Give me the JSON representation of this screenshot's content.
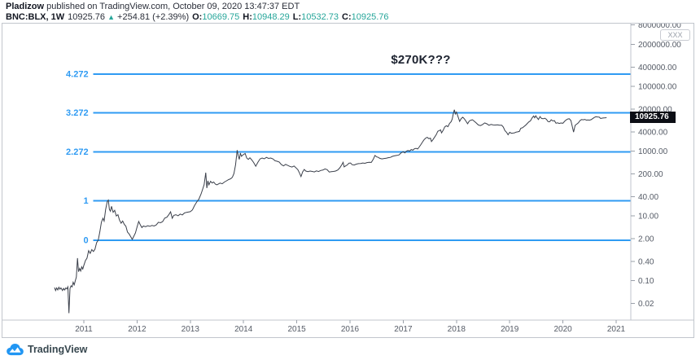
{
  "header": {
    "author": "Pladizow",
    "published_text": " published on TradingView.com, October 09, 2020 13:47:37 EDT",
    "symbol": "BNC:BLX, 1W",
    "last_price": "10925.76",
    "up_arrow": "▲",
    "change_text": "+254.81 (+2.39%)",
    "ohlc": [
      {
        "label": "O:",
        "value": "10669.75"
      },
      {
        "label": "H:",
        "value": "10948.29"
      },
      {
        "label": "L:",
        "value": "10532.73"
      },
      {
        "label": "C:",
        "value": "10925.76"
      }
    ]
  },
  "annotation_text": "$270K???",
  "axis_watermark": "XXX",
  "price_badge_text": "10925.76",
  "footer": {
    "brand": "TradingView"
  },
  "colors": {
    "fib_blue": "#2f9bf3",
    "price_line": "#3a3f4a",
    "axis_text": "#555b66",
    "border": "#c2c6cd",
    "badge_bg": "#0c0e15",
    "teal": "#26a69a",
    "logo_blue": "#2196f3"
  },
  "chart_data": {
    "type": "line",
    "title": "",
    "series_name": "BNC:BLX weekly close (log scale)",
    "x_axis": {
      "ticks": [
        2011,
        2012,
        2013,
        2014,
        2015,
        2016,
        2017,
        2018,
        2019,
        2020,
        2021
      ],
      "range": [
        2010.4,
        2021.35
      ]
    },
    "y_axis": {
      "scale": "log",
      "range": [
        0.01,
        8000000
      ],
      "ticks": [
        {
          "label": "8000000.00",
          "value": 8000000
        },
        {
          "label": "2000000.00",
          "value": 2000000
        },
        {
          "label": "400000.00",
          "value": 400000
        },
        {
          "label": "100000.00",
          "value": 100000
        },
        {
          "label": "20000.00",
          "value": 20000
        },
        {
          "label": "4000.00",
          "value": 4000
        },
        {
          "label": "1000.00",
          "value": 1000
        },
        {
          "label": "200.00",
          "value": 200
        },
        {
          "label": "40.00",
          "value": 40
        },
        {
          "label": "10.00",
          "value": 10
        },
        {
          "label": "2.00",
          "value": 2
        },
        {
          "label": "0.40",
          "value": 0.4
        },
        {
          "label": "0.10",
          "value": 0.1
        },
        {
          "label": "0.02",
          "value": 0.02
        }
      ]
    },
    "last_price": 10925.76,
    "fib_levels": [
      {
        "label": "4.272",
        "price": 240000
      },
      {
        "label": "3.272",
        "price": 15500
      },
      {
        "label": "2.272",
        "price": 950
      },
      {
        "label": "1",
        "price": 30
      },
      {
        "label": "0",
        "price": 1.78
      }
    ],
    "fib_start_year": 2011.33,
    "points": [
      [
        2010.45,
        0.062
      ],
      [
        2010.47,
        0.05
      ],
      [
        2010.49,
        0.06
      ],
      [
        2010.51,
        0.052
      ],
      [
        2010.53,
        0.063
      ],
      [
        2010.55,
        0.055
      ],
      [
        2010.57,
        0.06
      ],
      [
        2010.6,
        0.05
      ],
      [
        2010.62,
        0.058
      ],
      [
        2010.64,
        0.052
      ],
      [
        2010.66,
        0.06
      ],
      [
        2010.68,
        0.056
      ],
      [
        2010.7,
        0.065
      ],
      [
        2010.72,
        0.01
      ],
      [
        2010.74,
        0.058
      ],
      [
        2010.76,
        0.07
      ],
      [
        2010.78,
        0.065
      ],
      [
        2010.8,
        0.09
      ],
      [
        2010.82,
        0.075
      ],
      [
        2010.84,
        0.1
      ],
      [
        2010.86,
        0.13
      ],
      [
        2010.88,
        0.5
      ],
      [
        2010.9,
        0.19
      ],
      [
        2010.92,
        0.24
      ],
      [
        2010.94,
        0.2
      ],
      [
        2010.96,
        0.27
      ],
      [
        2010.98,
        0.23
      ],
      [
        2011.0,
        0.3
      ],
      [
        2011.03,
        0.42
      ],
      [
        2011.06,
        0.5
      ],
      [
        2011.09,
        0.85
      ],
      [
        2011.12,
        0.7
      ],
      [
        2011.15,
        0.92
      ],
      [
        2011.18,
        0.8
      ],
      [
        2011.21,
        0.95
      ],
      [
        2011.24,
        1.5
      ],
      [
        2011.27,
        1.8
      ],
      [
        2011.3,
        3.2
      ],
      [
        2011.33,
        6.5
      ],
      [
        2011.36,
        8.5
      ],
      [
        2011.38,
        7
      ],
      [
        2011.41,
        16
      ],
      [
        2011.44,
        28
      ],
      [
        2011.46,
        31
      ],
      [
        2011.48,
        16
      ],
      [
        2011.5,
        14
      ],
      [
        2011.52,
        20
      ],
      [
        2011.55,
        13
      ],
      [
        2011.58,
        15
      ],
      [
        2011.61,
        10
      ],
      [
        2011.64,
        11
      ],
      [
        2011.67,
        7.5
      ],
      [
        2011.7,
        6
      ],
      [
        2011.73,
        7
      ],
      [
        2011.76,
        5.5
      ],
      [
        2011.79,
        4.8
      ],
      [
        2011.82,
        3.2
      ],
      [
        2011.85,
        2.8
      ],
      [
        2011.88,
        2.3
      ],
      [
        2011.91,
        1.9
      ],
      [
        2011.94,
        2.4
      ],
      [
        2011.97,
        3
      ],
      [
        2012.0,
        4.6
      ],
      [
        2012.03,
        6.8
      ],
      [
        2012.06,
        5.4
      ],
      [
        2012.09,
        4.4
      ],
      [
        2012.12,
        4.9
      ],
      [
        2012.16,
        4.7
      ],
      [
        2012.2,
        5
      ],
      [
        2012.24,
        4.8
      ],
      [
        2012.28,
        5.1
      ],
      [
        2012.32,
        4.9
      ],
      [
        2012.36,
        5.3
      ],
      [
        2012.4,
        6.4
      ],
      [
        2012.44,
        6.2
      ],
      [
        2012.48,
        6.7
      ],
      [
        2012.52,
        8.6
      ],
      [
        2012.56,
        9.2
      ],
      [
        2012.6,
        11.2
      ],
      [
        2012.63,
        13.5
      ],
      [
        2012.66,
        8.5
      ],
      [
        2012.69,
        10.5
      ],
      [
        2012.73,
        11
      ],
      [
        2012.77,
        10.2
      ],
      [
        2012.81,
        11.5
      ],
      [
        2012.85,
        10.8
      ],
      [
        2012.89,
        12.4
      ],
      [
        2012.93,
        13
      ],
      [
        2012.97,
        13.4
      ],
      [
        2013.0,
        13.6
      ],
      [
        2013.04,
        15.5
      ],
      [
        2013.08,
        21
      ],
      [
        2013.12,
        27
      ],
      [
        2013.16,
        33
      ],
      [
        2013.2,
        47
      ],
      [
        2013.23,
        65
      ],
      [
        2013.26,
        93
      ],
      [
        2013.29,
        218
      ],
      [
        2013.31,
        73
      ],
      [
        2013.33,
        122
      ],
      [
        2013.35,
        92
      ],
      [
        2013.38,
        118
      ],
      [
        2013.41,
        105
      ],
      [
        2013.44,
        112
      ],
      [
        2013.47,
        97
      ],
      [
        2013.5,
        92
      ],
      [
        2013.53,
        98
      ],
      [
        2013.56,
        104
      ],
      [
        2013.6,
        99
      ],
      [
        2013.64,
        112
      ],
      [
        2013.68,
        122
      ],
      [
        2013.72,
        133
      ],
      [
        2013.76,
        142
      ],
      [
        2013.79,
        158
      ],
      [
        2013.82,
        205
      ],
      [
        2013.85,
        380
      ],
      [
        2013.88,
        1080
      ],
      [
        2013.9,
        720
      ],
      [
        2013.92,
        560
      ],
      [
        2013.94,
        880
      ],
      [
        2013.96,
        700
      ],
      [
        2014.0,
        800
      ],
      [
        2014.03,
        850
      ],
      [
        2014.06,
        620
      ],
      [
        2014.09,
        560
      ],
      [
        2014.12,
        630
      ],
      [
        2014.15,
        550
      ],
      [
        2014.19,
        450
      ],
      [
        2014.23,
        345
      ],
      [
        2014.27,
        460
      ],
      [
        2014.31,
        580
      ],
      [
        2014.35,
        620
      ],
      [
        2014.39,
        585
      ],
      [
        2014.43,
        650
      ],
      [
        2014.47,
        600
      ],
      [
        2014.51,
        620
      ],
      [
        2014.55,
        585
      ],
      [
        2014.59,
        510
      ],
      [
        2014.63,
        490
      ],
      [
        2014.67,
        465
      ],
      [
        2014.71,
        390
      ],
      [
        2014.75,
        355
      ],
      [
        2014.79,
        395
      ],
      [
        2014.83,
        365
      ],
      [
        2014.87,
        340
      ],
      [
        2014.91,
        325
      ],
      [
        2014.95,
        350
      ],
      [
        2014.98,
        315
      ],
      [
        2015.02,
        270
      ],
      [
        2015.05,
        215
      ],
      [
        2015.08,
        165
      ],
      [
        2015.11,
        230
      ],
      [
        2015.14,
        275
      ],
      [
        2015.17,
        245
      ],
      [
        2015.21,
        235
      ],
      [
        2015.25,
        245
      ],
      [
        2015.29,
        238
      ],
      [
        2015.33,
        230
      ],
      [
        2015.37,
        248
      ],
      [
        2015.41,
        236
      ],
      [
        2015.45,
        255
      ],
      [
        2015.49,
        262
      ],
      [
        2015.53,
        284
      ],
      [
        2015.57,
        270
      ],
      [
        2015.61,
        228
      ],
      [
        2015.65,
        234
      ],
      [
        2015.69,
        238
      ],
      [
        2015.73,
        245
      ],
      [
        2015.77,
        264
      ],
      [
        2015.81,
        310
      ],
      [
        2015.85,
        395
      ],
      [
        2015.87,
        455
      ],
      [
        2015.89,
        330
      ],
      [
        2015.92,
        355
      ],
      [
        2015.95,
        378
      ],
      [
        2015.98,
        430
      ],
      [
        2016.01,
        434
      ],
      [
        2016.04,
        385
      ],
      [
        2016.08,
        375
      ],
      [
        2016.12,
        400
      ],
      [
        2016.16,
        416
      ],
      [
        2016.2,
        420
      ],
      [
        2016.24,
        435
      ],
      [
        2016.28,
        425
      ],
      [
        2016.32,
        448
      ],
      [
        2016.36,
        455
      ],
      [
        2016.4,
        452
      ],
      [
        2016.44,
        580
      ],
      [
        2016.47,
        745
      ],
      [
        2016.5,
        670
      ],
      [
        2016.53,
        650
      ],
      [
        2016.56,
        605
      ],
      [
        2016.6,
        580
      ],
      [
        2016.64,
        598
      ],
      [
        2016.68,
        612
      ],
      [
        2016.72,
        635
      ],
      [
        2016.76,
        650
      ],
      [
        2016.8,
        700
      ],
      [
        2016.84,
        725
      ],
      [
        2016.88,
        745
      ],
      [
        2016.92,
        770
      ],
      [
        2016.96,
        895
      ],
      [
        2017.0,
        965
      ],
      [
        2017.03,
        890
      ],
      [
        2017.06,
        1010
      ],
      [
        2017.09,
        1055
      ],
      [
        2017.12,
        1010
      ],
      [
        2017.15,
        1130
      ],
      [
        2017.18,
        1080
      ],
      [
        2017.21,
        1190
      ],
      [
        2017.24,
        1230
      ],
      [
        2017.27,
        1180
      ],
      [
        2017.3,
        1350
      ],
      [
        2017.33,
        1600
      ],
      [
        2017.36,
        1900
      ],
      [
        2017.39,
        2250
      ],
      [
        2017.42,
        2550
      ],
      [
        2017.45,
        2700
      ],
      [
        2017.48,
        2450
      ],
      [
        2017.51,
        2550
      ],
      [
        2017.53,
        1990
      ],
      [
        2017.56,
        2300
      ],
      [
        2017.59,
        2750
      ],
      [
        2017.62,
        3250
      ],
      [
        2017.65,
        4150
      ],
      [
        2017.68,
        4350
      ],
      [
        2017.7,
        4600
      ],
      [
        2017.72,
        3700
      ],
      [
        2017.75,
        4450
      ],
      [
        2017.78,
        5650
      ],
      [
        2017.81,
        6150
      ],
      [
        2017.84,
        5750
      ],
      [
        2017.87,
        7250
      ],
      [
        2017.9,
        8250
      ],
      [
        2017.92,
        9900
      ],
      [
        2017.94,
        14500
      ],
      [
        2017.96,
        19200
      ],
      [
        2017.98,
        14200
      ],
      [
        2018.0,
        16200
      ],
      [
        2018.03,
        11600
      ],
      [
        2018.06,
        8400
      ],
      [
        2018.09,
        10300
      ],
      [
        2018.12,
        11300
      ],
      [
        2018.15,
        9900
      ],
      [
        2018.18,
        8400
      ],
      [
        2018.21,
        7100
      ],
      [
        2018.24,
        8600
      ],
      [
        2018.27,
        9100
      ],
      [
        2018.3,
        9400
      ],
      [
        2018.33,
        8600
      ],
      [
        2018.37,
        7500
      ],
      [
        2018.41,
        6500
      ],
      [
        2018.45,
        6200
      ],
      [
        2018.49,
        6700
      ],
      [
        2018.53,
        7500
      ],
      [
        2018.57,
        7050
      ],
      [
        2018.61,
        6350
      ],
      [
        2018.65,
        6750
      ],
      [
        2018.69,
        6500
      ],
      [
        2018.73,
        6450
      ],
      [
        2018.77,
        6550
      ],
      [
        2018.81,
        6400
      ],
      [
        2018.85,
        6350
      ],
      [
        2018.88,
        5600
      ],
      [
        2018.91,
        4350
      ],
      [
        2018.94,
        3850
      ],
      [
        2018.97,
        3250
      ],
      [
        2019.0,
        3850
      ],
      [
        2019.03,
        3600
      ],
      [
        2019.06,
        3650
      ],
      [
        2019.09,
        3700
      ],
      [
        2019.12,
        3900
      ],
      [
        2019.15,
        3980
      ],
      [
        2019.18,
        4080
      ],
      [
        2019.21,
        5150
      ],
      [
        2019.24,
        5300
      ],
      [
        2019.27,
        5850
      ],
      [
        2019.3,
        6400
      ],
      [
        2019.33,
        7200
      ],
      [
        2019.36,
        8050
      ],
      [
        2019.39,
        8700
      ],
      [
        2019.42,
        10700
      ],
      [
        2019.45,
        12300
      ],
      [
        2019.47,
        10800
      ],
      [
        2019.49,
        12500
      ],
      [
        2019.51,
        11000
      ],
      [
        2019.54,
        9600
      ],
      [
        2019.57,
        11800
      ],
      [
        2019.6,
        10300
      ],
      [
        2019.63,
        10100
      ],
      [
        2019.66,
        10450
      ],
      [
        2019.69,
        9700
      ],
      [
        2019.72,
        8250
      ],
      [
        2019.75,
        8150
      ],
      [
        2019.78,
        9350
      ],
      [
        2019.81,
        8650
      ],
      [
        2019.84,
        8850
      ],
      [
        2019.87,
        7350
      ],
      [
        2019.9,
        7550
      ],
      [
        2019.93,
        7200
      ],
      [
        2019.96,
        7450
      ],
      [
        2020.0,
        7350
      ],
      [
        2020.03,
        8400
      ],
      [
        2020.06,
        9250
      ],
      [
        2020.09,
        9950
      ],
      [
        2020.12,
        10100
      ],
      [
        2020.15,
        8900
      ],
      [
        2020.18,
        5400
      ],
      [
        2020.2,
        3900
      ],
      [
        2020.23,
        6300
      ],
      [
        2020.26,
        6900
      ],
      [
        2020.29,
        7550
      ],
      [
        2020.32,
        8850
      ],
      [
        2020.35,
        9550
      ],
      [
        2020.38,
        9350
      ],
      [
        2020.41,
        9650
      ],
      [
        2020.44,
        9150
      ],
      [
        2020.47,
        9250
      ],
      [
        2020.5,
        9150
      ],
      [
        2020.53,
        9450
      ],
      [
        2020.56,
        10200
      ],
      [
        2020.59,
        11100
      ],
      [
        2020.62,
        11700
      ],
      [
        2020.65,
        11500
      ],
      [
        2020.68,
        11400
      ],
      [
        2020.71,
        10250
      ],
      [
        2020.74,
        10550
      ],
      [
        2020.77,
        10700
      ],
      [
        2020.8,
        10800
      ],
      [
        2020.82,
        10925.76
      ]
    ]
  }
}
